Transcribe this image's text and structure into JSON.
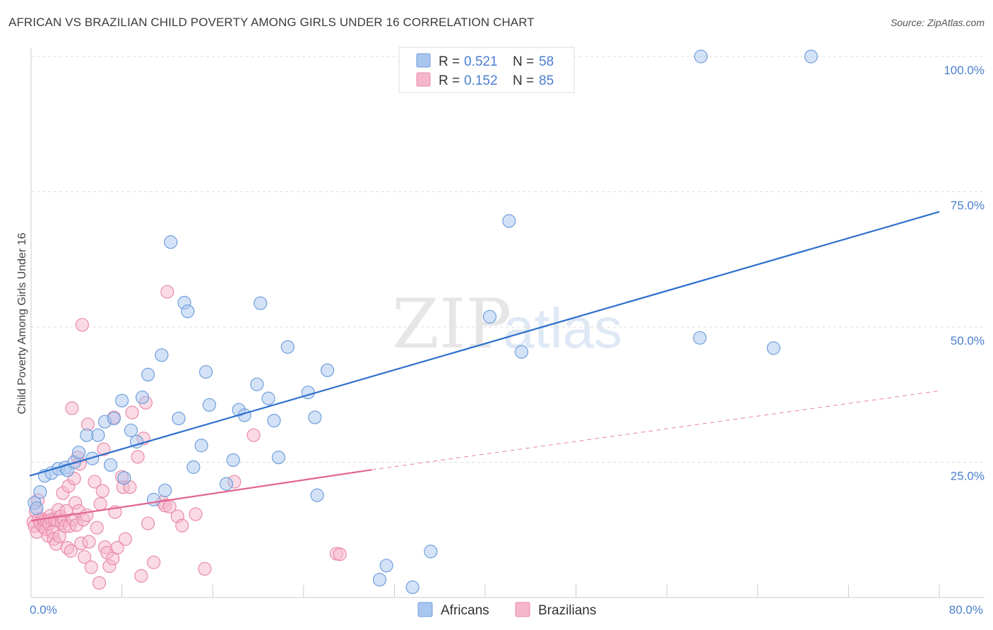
{
  "header": {
    "title": "AFRICAN VS BRAZILIAN CHILD POVERTY AMONG GIRLS UNDER 16 CORRELATION CHART",
    "source": "Source: ZipAtlas.com"
  },
  "watermark": {
    "zip": "ZIP",
    "atlas": "atlas"
  },
  "colors": {
    "africans_fill": "#a9c6ef",
    "africans_stroke": "#6f9fdc",
    "africans_line": "#2d6fcc",
    "brazilians_fill": "#f6b7cb",
    "brazilians_stroke": "#e98aa9",
    "brazilians_line": "#e2648f",
    "tick_blue": "#4a7fcf",
    "grid": "#dddddd"
  },
  "legend_top": [
    {
      "r_label": "R =",
      "r_value": "0.521",
      "n_label": "N =",
      "n_value": "58"
    },
    {
      "r_label": "R =",
      "r_value": "0.152",
      "n_label": "N =",
      "n_value": "85"
    }
  ],
  "chart_data": {
    "type": "scatter",
    "ylabel": "Child Poverty Among Girls Under 16",
    "xlabel": "",
    "xlim": [
      0,
      80
    ],
    "ylim": [
      0,
      100
    ],
    "x_tick_labels": {
      "min": "0.0%",
      "max": "80.0%"
    },
    "y_tick_labels": [
      {
        "value": 25,
        "label": "25.0%"
      },
      {
        "value": 50,
        "label": "50.0%"
      },
      {
        "value": 75,
        "label": "75.0%"
      },
      {
        "value": 100,
        "label": "100.0%"
      }
    ],
    "grid": true,
    "legend_position": "top-center",
    "series": [
      {
        "name": "Africans",
        "r": 0.521,
        "n": 58,
        "trend": {
          "x": [
            0,
            80
          ],
          "y": [
            22.5,
            71.3
          ]
        },
        "points": [
          [
            0.3,
            17.5
          ],
          [
            0.5,
            16.5
          ],
          [
            0.8,
            19.5
          ],
          [
            1.2,
            22.5
          ],
          [
            1.8,
            23.0
          ],
          [
            2.4,
            23.8
          ],
          [
            3.0,
            24.0
          ],
          [
            3.2,
            23.5
          ],
          [
            3.8,
            25.0
          ],
          [
            4.2,
            26.8
          ],
          [
            4.9,
            30.0
          ],
          [
            5.4,
            25.7
          ],
          [
            5.9,
            30.0
          ],
          [
            6.5,
            32.5
          ],
          [
            7.0,
            24.5
          ],
          [
            7.3,
            33.1
          ],
          [
            8.0,
            36.4
          ],
          [
            8.2,
            22.1
          ],
          [
            8.8,
            30.9
          ],
          [
            9.3,
            28.8
          ],
          [
            9.8,
            37.0
          ],
          [
            10.3,
            41.2
          ],
          [
            10.8,
            18.1
          ],
          [
            11.5,
            44.8
          ],
          [
            11.8,
            19.8
          ],
          [
            12.3,
            65.7
          ],
          [
            13.0,
            33.1
          ],
          [
            13.5,
            54.5
          ],
          [
            13.8,
            52.9
          ],
          [
            14.3,
            24.1
          ],
          [
            15.0,
            28.1
          ],
          [
            15.4,
            41.7
          ],
          [
            15.7,
            35.6
          ],
          [
            17.2,
            21.0
          ],
          [
            17.8,
            25.4
          ],
          [
            18.3,
            34.7
          ],
          [
            18.8,
            33.7
          ],
          [
            19.9,
            39.4
          ],
          [
            20.2,
            54.4
          ],
          [
            20.9,
            36.8
          ],
          [
            21.4,
            32.7
          ],
          [
            21.8,
            25.9
          ],
          [
            22.6,
            46.3
          ],
          [
            24.4,
            37.9
          ],
          [
            25.0,
            33.3
          ],
          [
            25.2,
            18.9
          ],
          [
            26.1,
            42.0
          ],
          [
            30.7,
            3.3
          ],
          [
            31.3,
            5.9
          ],
          [
            33.6,
            1.9
          ],
          [
            35.2,
            8.5
          ],
          [
            40.4,
            51.9
          ],
          [
            42.1,
            69.6
          ],
          [
            43.2,
            45.4
          ],
          [
            58.9,
            48.0
          ],
          [
            59.0,
            100.0
          ],
          [
            65.4,
            46.1
          ],
          [
            68.7,
            100.0
          ]
        ]
      },
      {
        "name": "Brazilians",
        "r": 0.152,
        "n": 85,
        "trend": {
          "x": [
            0,
            30
          ],
          "y": [
            14.2,
            23.6
          ]
        },
        "trend_extension": {
          "x": [
            30,
            80
          ],
          "y": [
            23.6,
            38.2
          ]
        },
        "points": [
          [
            0.2,
            14.0
          ],
          [
            0.3,
            13.2
          ],
          [
            0.4,
            16.0
          ],
          [
            0.5,
            12.1
          ],
          [
            0.6,
            18.0
          ],
          [
            0.7,
            14.5
          ],
          [
            0.8,
            13.7
          ],
          [
            1.0,
            14.5
          ],
          [
            1.1,
            13.0
          ],
          [
            1.2,
            14.2
          ],
          [
            1.3,
            12.6
          ],
          [
            1.4,
            14.1
          ],
          [
            1.5,
            11.4
          ],
          [
            1.6,
            13.6
          ],
          [
            1.7,
            15.1
          ],
          [
            1.8,
            14.4
          ],
          [
            1.9,
            12.1
          ],
          [
            2.0,
            10.8
          ],
          [
            2.1,
            14.3
          ],
          [
            2.2,
            9.9
          ],
          [
            2.3,
            14.2
          ],
          [
            2.4,
            16.2
          ],
          [
            2.5,
            11.3
          ],
          [
            2.6,
            15.0
          ],
          [
            2.7,
            13.8
          ],
          [
            2.8,
            19.3
          ],
          [
            2.9,
            14.3
          ],
          [
            3.0,
            13.2
          ],
          [
            3.1,
            16.0
          ],
          [
            3.2,
            9.2
          ],
          [
            3.3,
            20.6
          ],
          [
            3.4,
            13.2
          ],
          [
            3.5,
            8.6
          ],
          [
            3.6,
            35.0
          ],
          [
            3.7,
            14.4
          ],
          [
            3.8,
            22.0
          ],
          [
            3.9,
            17.5
          ],
          [
            4.0,
            13.4
          ],
          [
            4.1,
            25.9
          ],
          [
            4.2,
            16.0
          ],
          [
            4.3,
            24.7
          ],
          [
            4.4,
            10.0
          ],
          [
            4.5,
            50.4
          ],
          [
            4.6,
            14.4
          ],
          [
            4.7,
            7.5
          ],
          [
            4.9,
            15.2
          ],
          [
            5.0,
            32.0
          ],
          [
            5.1,
            10.3
          ],
          [
            5.3,
            5.6
          ],
          [
            5.6,
            21.4
          ],
          [
            5.8,
            12.9
          ],
          [
            6.0,
            2.7
          ],
          [
            6.1,
            17.3
          ],
          [
            6.3,
            19.7
          ],
          [
            6.4,
            27.4
          ],
          [
            6.5,
            9.3
          ],
          [
            6.7,
            8.3
          ],
          [
            6.9,
            5.8
          ],
          [
            7.2,
            7.2
          ],
          [
            7.3,
            33.3
          ],
          [
            7.4,
            15.8
          ],
          [
            7.6,
            9.2
          ],
          [
            8.0,
            22.3
          ],
          [
            8.1,
            20.4
          ],
          [
            8.3,
            10.8
          ],
          [
            8.7,
            20.4
          ],
          [
            8.9,
            34.2
          ],
          [
            9.4,
            26.0
          ],
          [
            9.7,
            4.0
          ],
          [
            9.9,
            29.4
          ],
          [
            10.1,
            36.0
          ],
          [
            10.3,
            13.7
          ],
          [
            10.8,
            6.5
          ],
          [
            11.6,
            17.6
          ],
          [
            11.8,
            17.0
          ],
          [
            12.0,
            56.5
          ],
          [
            12.2,
            16.8
          ],
          [
            12.9,
            15.0
          ],
          [
            13.3,
            13.3
          ],
          [
            14.5,
            15.4
          ],
          [
            15.3,
            5.3
          ],
          [
            17.9,
            21.4
          ],
          [
            19.6,
            30.0
          ],
          [
            26.9,
            8.1
          ],
          [
            27.2,
            8.0
          ]
        ]
      }
    ]
  }
}
